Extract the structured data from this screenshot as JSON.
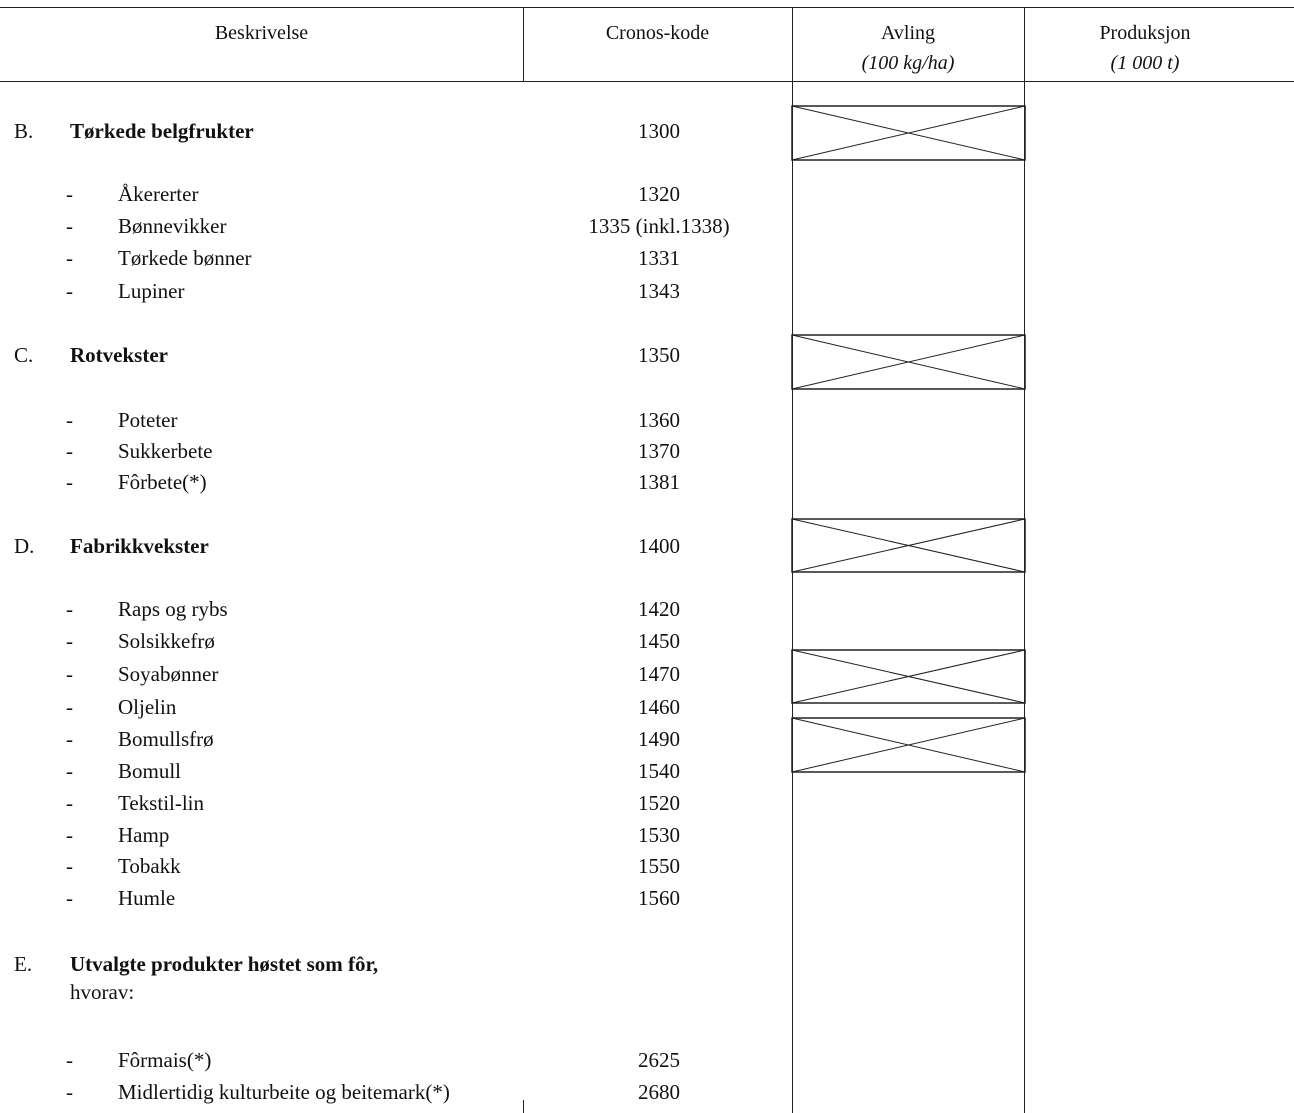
{
  "header": {
    "col_description": "Beskrivelse",
    "col_code": "Cronos-kode",
    "col_yield_title": "Avling",
    "col_yield_unit": "(100 kg/ha)",
    "col_production_title": "Produksjon",
    "col_production_unit": "(1 000 t)"
  },
  "rows": [
    {
      "type": "section",
      "letter": "B.",
      "label": "Tørkede belgfrukter",
      "code": "1300"
    },
    {
      "type": "item",
      "dash": "-",
      "label": "Åkererter",
      "code": "1320"
    },
    {
      "type": "item",
      "dash": "-",
      "label": "Bønnevikker",
      "code": "1335 (inkl.1338)"
    },
    {
      "type": "item",
      "dash": "-",
      "label": "Tørkede bønner",
      "code": "1331"
    },
    {
      "type": "item",
      "dash": "-",
      "label": "Lupiner",
      "code": "1343"
    },
    {
      "type": "section",
      "letter": "C.",
      "label": "Rotvekster",
      "code": "1350"
    },
    {
      "type": "item",
      "dash": "-",
      "label": "Poteter",
      "code": "1360"
    },
    {
      "type": "item",
      "dash": "-",
      "label": "Sukkerbete",
      "code": "1370"
    },
    {
      "type": "item",
      "dash": "-",
      "label": "Fôrbete(*)",
      "code": "1381"
    },
    {
      "type": "section",
      "letter": "D.",
      "label": "Fabrikkvekster",
      "code": "1400"
    },
    {
      "type": "item",
      "dash": "-",
      "label": "Raps og rybs",
      "code": "1420"
    },
    {
      "type": "item",
      "dash": "-",
      "label": "Solsikkefrø",
      "code": "1450"
    },
    {
      "type": "item",
      "dash": "-",
      "label": "Soyabønner",
      "code": "1470"
    },
    {
      "type": "item",
      "dash": "-",
      "label": "Oljelin",
      "code": "1460"
    },
    {
      "type": "item",
      "dash": "-",
      "label": "Bomullsfrø",
      "code": "1490"
    },
    {
      "type": "item",
      "dash": "-",
      "label": "Bomull",
      "code": "1540"
    },
    {
      "type": "item",
      "dash": "-",
      "label": "Tekstil-lin",
      "code": "1520"
    },
    {
      "type": "item",
      "dash": "-",
      "label": "Hamp",
      "code": "1530"
    },
    {
      "type": "item",
      "dash": "-",
      "label": "Tobakk",
      "code": "1550"
    },
    {
      "type": "item",
      "dash": "-",
      "label": "Humle",
      "code": "1560"
    },
    {
      "type": "section",
      "letter": "E.",
      "label": "Utvalgte produkter høstet som fôr,",
      "code": ""
    },
    {
      "type": "note",
      "label": "hvorav:"
    },
    {
      "type": "item",
      "dash": "-",
      "label": "Fôrmais(*)",
      "code": "2625"
    },
    {
      "type": "item",
      "dash": "-",
      "label": "Midlertidig kulturbeite og beitemark(*)",
      "code": "2680"
    }
  ]
}
